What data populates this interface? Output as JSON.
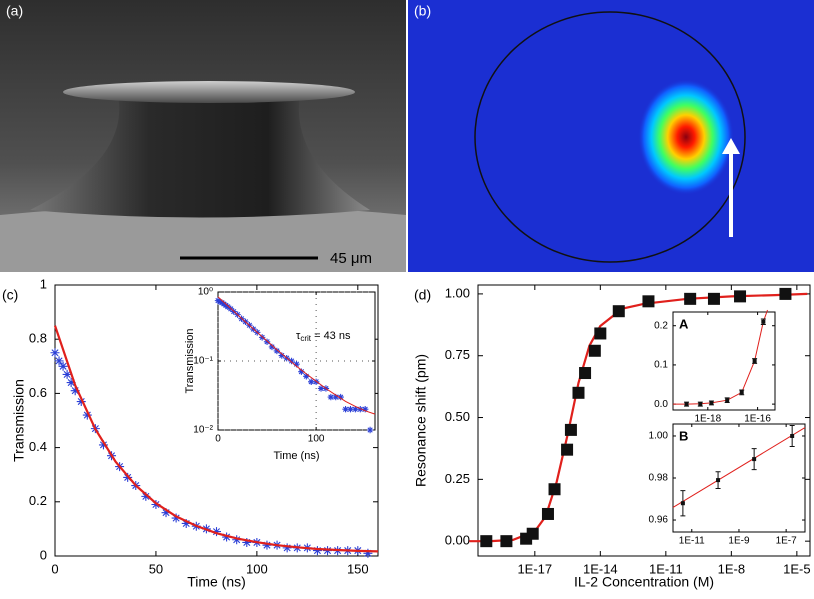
{
  "images": {
    "a": {
      "label": "(a)",
      "scale_bar": "45 μm"
    },
    "b": {
      "label": "(b)"
    }
  },
  "chart_data": [
    {
      "type": "scatter",
      "panel_label": "(c)",
      "x_label": "Time (ns)",
      "y_label": "Transmission",
      "xlim": [
        0,
        160
      ],
      "ylim": [
        0,
        1
      ],
      "xticks": [
        0,
        50,
        100,
        150
      ],
      "yticks": [
        0,
        0.2,
        0.4,
        0.6,
        0.8,
        1
      ],
      "series": [
        {
          "type": "scatter",
          "marker": "asterisk",
          "color": "#2b3fd6",
          "x": [
            0,
            2,
            4,
            6,
            8,
            10,
            13,
            16,
            20,
            24,
            28,
            32,
            36,
            40,
            45,
            50,
            55,
            60,
            65,
            70,
            75,
            80,
            85,
            90,
            95,
            100,
            105,
            110,
            115,
            120,
            125,
            130,
            135,
            140,
            145,
            150,
            155
          ],
          "values": [
            0.75,
            0.72,
            0.7,
            0.67,
            0.64,
            0.61,
            0.57,
            0.52,
            0.47,
            0.41,
            0.37,
            0.33,
            0.29,
            0.26,
            0.22,
            0.19,
            0.16,
            0.14,
            0.12,
            0.11,
            0.1,
            0.09,
            0.07,
            0.06,
            0.05,
            0.05,
            0.04,
            0.04,
            0.03,
            0.03,
            0.03,
            0.02,
            0.02,
            0.02,
            0.02,
            0.02,
            0.01
          ]
        },
        {
          "type": "line",
          "color": "#e0201c",
          "x": [
            0,
            10,
            20,
            30,
            40,
            50,
            60,
            70,
            80,
            90,
            100,
            110,
            120,
            130,
            140,
            150,
            160
          ],
          "values": [
            0.85,
            0.63,
            0.468,
            0.348,
            0.26,
            0.195,
            0.146,
            0.111,
            0.084,
            0.065,
            0.051,
            0.04,
            0.032,
            0.026,
            0.022,
            0.019,
            0.017
          ]
        }
      ],
      "insets": [
        {
          "type": "scatter",
          "x_label": "Time (ns)",
          "y_label": "Transmission",
          "ylog": true,
          "grid": true,
          "xlim": [
            0,
            160
          ],
          "ylim": [
            0.01,
            1
          ],
          "xticks": [
            0,
            100
          ],
          "yticks": [
            {
              "value": 0.01,
              "label": "10⁻²"
            },
            {
              "value": 0.1,
              "label": "10⁻¹"
            },
            {
              "value": 1,
              "label": "10⁰"
            }
          ],
          "annotation": {
            "symbol": "τ",
            "subscript": "crit",
            "text": " = 43 ns"
          }
        }
      ]
    },
    {
      "type": "scatter",
      "panel_label": "(d)",
      "x_label": "IL-2 Concentration (M)",
      "y_label": "Resonance shift (pm)",
      "xlog": true,
      "xlim": [
        2.5e-20,
        4e-05
      ],
      "ylim": [
        -0.06,
        1.036
      ],
      "xticks": [
        {
          "value": 1e-17,
          "label": "1E-17"
        },
        {
          "value": 1e-14,
          "label": "1E-14"
        },
        {
          "value": 1e-11,
          "label": "1E-11"
        },
        {
          "value": 1e-08,
          "label": "1E-8"
        },
        {
          "value": 1e-05,
          "label": "1E-5"
        }
      ],
      "yticks": [
        {
          "value": 0,
          "label": "0.00"
        },
        {
          "value": 0.25,
          "label": "0.25"
        },
        {
          "value": 0.5,
          "label": "0.50"
        },
        {
          "value": 0.75,
          "label": "0.75"
        },
        {
          "value": 1,
          "label": "1.00"
        }
      ],
      "series": [
        {
          "type": "line",
          "color": "#e0201c",
          "x": [
            1e-20,
            1e-19,
            1e-18,
            1e-17,
            3.16e-17,
            1e-16,
            3.16e-16,
            1e-15,
            3.16e-15,
            1e-14,
            1e-13,
            1e-12,
            1e-11,
            1e-10,
            1e-08,
            1e-06,
            3e-05
          ],
          "values": [
            0,
            0.0003,
            0.005,
            0.04,
            0.1,
            0.24,
            0.43,
            0.64,
            0.79,
            0.87,
            0.94,
            0.96,
            0.97,
            0.98,
            0.99,
            0.995,
            1
          ]
        },
        {
          "type": "scatter",
          "marker": "square",
          "color": "#111111",
          "x": [
            6e-20,
            5e-19,
            4e-18,
            8e-18,
            4e-17,
            8e-17,
            3e-16,
            4.5e-16,
            1e-15,
            2e-15,
            5.6e-15,
            1e-14,
            7e-14,
            1.6e-12,
            1.3e-10,
            1.6e-09,
            2.5e-08,
            3e-06
          ],
          "values": [
            0,
            0,
            0.01,
            0.03,
            0.11,
            0.21,
            0.37,
            0.45,
            0.6,
            0.68,
            0.77,
            0.84,
            0.93,
            0.97,
            0.98,
            0.98,
            0.99,
            1
          ]
        }
      ],
      "insets": [
        {
          "type": "scatter",
          "label": "A",
          "xlog": true,
          "xlim": [
            4e-20,
            5e-16
          ],
          "ylim": [
            -0.015,
            0.235
          ],
          "xticks": [
            {
              "value": 1e-18,
              "label": "1E-18"
            },
            {
              "value": 1e-16,
              "label": "1E-16"
            }
          ],
          "yticks": [
            {
              "value": 0,
              "label": "0.0"
            },
            0.1,
            0.2
          ],
          "series": [
            {
              "type": "line",
              "color": "#e0201c",
              "x": [
                4e-20,
                1.4e-19,
                5e-19,
                1.4e-18,
                6e-18,
                2.3e-17,
                7.6e-17,
                1.7e-16,
                2.5e-16
              ],
              "values": [
                0,
                0,
                0.001,
                0.003,
                0.01,
                0.03,
                0.11,
                0.21,
                0.24
              ]
            },
            {
              "type": "scatter",
              "marker": "small-square",
              "color": "#111111",
              "x": [
                1.4e-19,
                5e-19,
                1.4e-18,
                6e-18,
                2.3e-17,
                7.6e-17,
                1.7e-16
              ],
              "values": [
                0,
                0,
                0.003,
                0.01,
                0.03,
                0.11,
                0.21
              ],
              "errors": [
                0.005,
                0.005,
                0.005,
                0.006,
                0.006,
                0.006,
                0.007
              ]
            }
          ]
        },
        {
          "type": "scatter",
          "label": "B",
          "xlog": true,
          "xlim": [
            1.6e-12,
            6.3e-07
          ],
          "ylim": [
            0.9543,
            1.0057
          ],
          "xticks": [
            {
              "value": 1e-11,
              "label": "1E-11"
            },
            {
              "value": 1e-09,
              "label": "1E-9"
            },
            {
              "value": 1e-07,
              "label": "1E-7"
            }
          ],
          "yticks": [
            0.96,
            0.98,
            {
              "value": 1,
              "label": "1.00"
            }
          ],
          "series": [
            {
              "type": "line",
              "color": "#e0201c",
              "x": [
                1.6e-12,
                6.3e-07
              ],
              "values": [
                0.966,
                1.004
              ]
            },
            {
              "type": "scatter",
              "marker": "small-square",
              "color": "#111111",
              "x": [
                4.2e-12,
                1.3e-10,
                4.4e-09,
                1.8e-07
              ],
              "values": [
                0.968,
                0.979,
                0.989,
                1
              ],
              "errors": [
                0.006,
                0.004,
                0.005,
                0.005
              ]
            }
          ]
        }
      ]
    }
  ]
}
